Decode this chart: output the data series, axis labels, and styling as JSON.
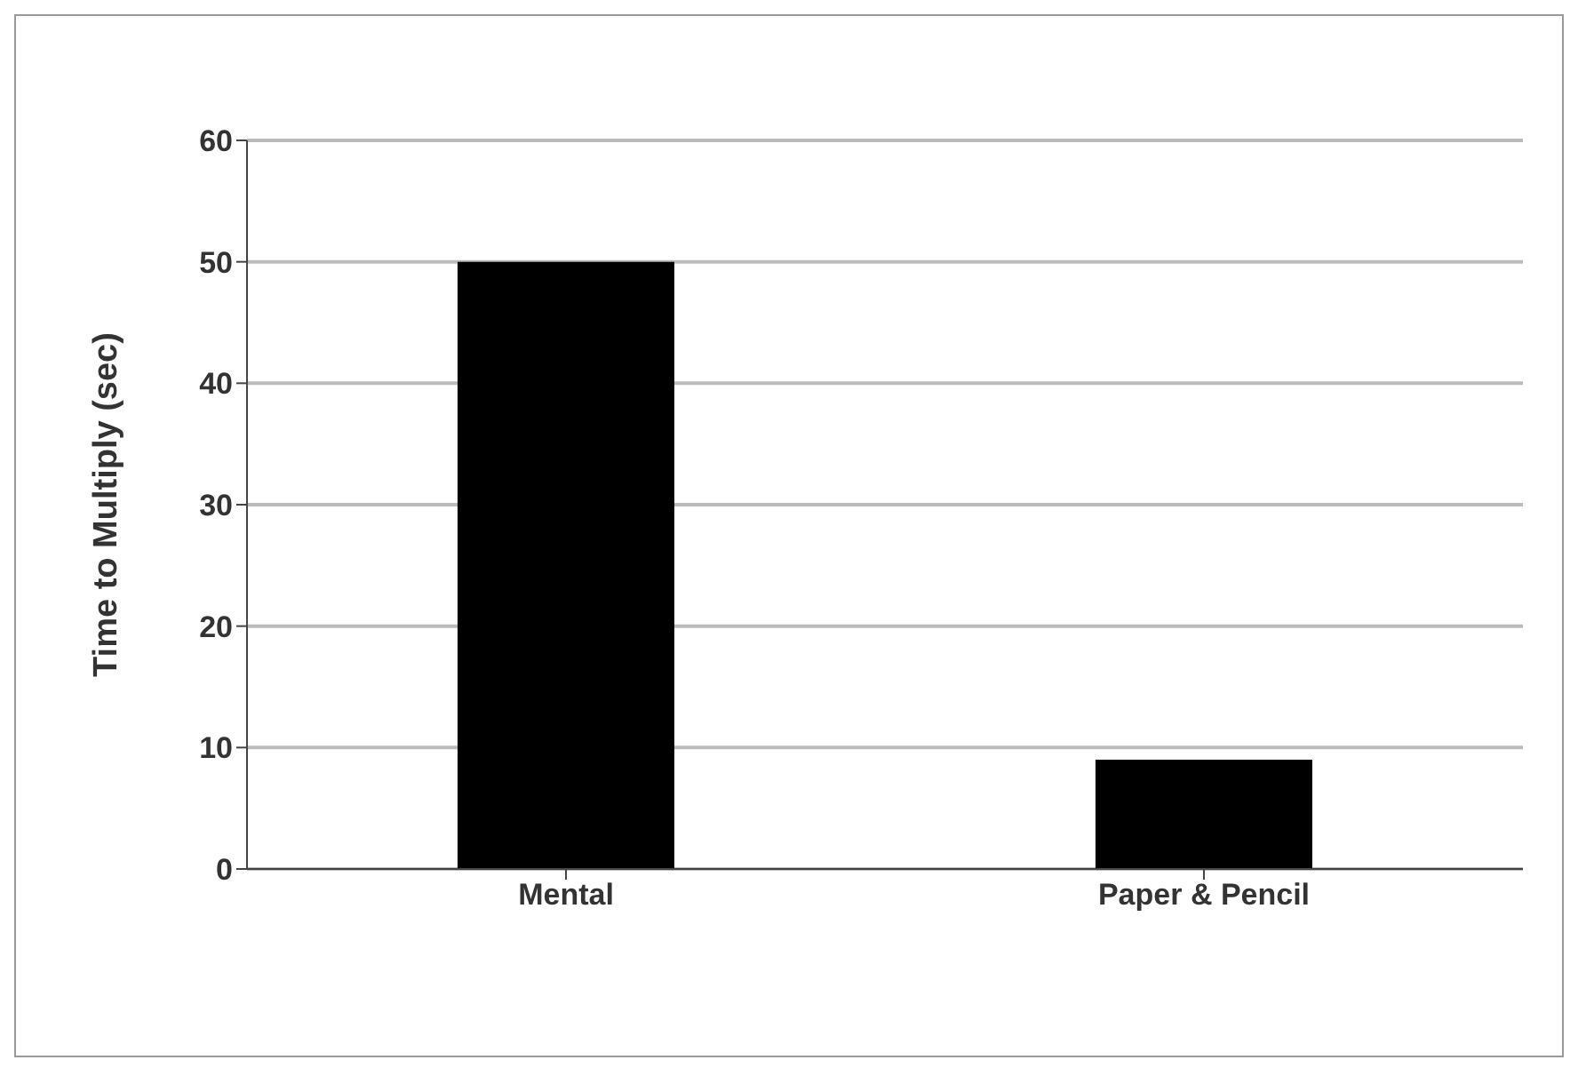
{
  "chart_data": {
    "type": "bar",
    "ylabel": "Time to Multiply (sec)",
    "categories": [
      "Mental",
      "Paper & Pencil"
    ],
    "values": [
      50,
      9
    ],
    "color": "#000000",
    "ylim": [
      0,
      60
    ],
    "yticks": [
      0,
      10,
      20,
      30,
      40,
      50,
      60
    ],
    "grid": "y"
  }
}
